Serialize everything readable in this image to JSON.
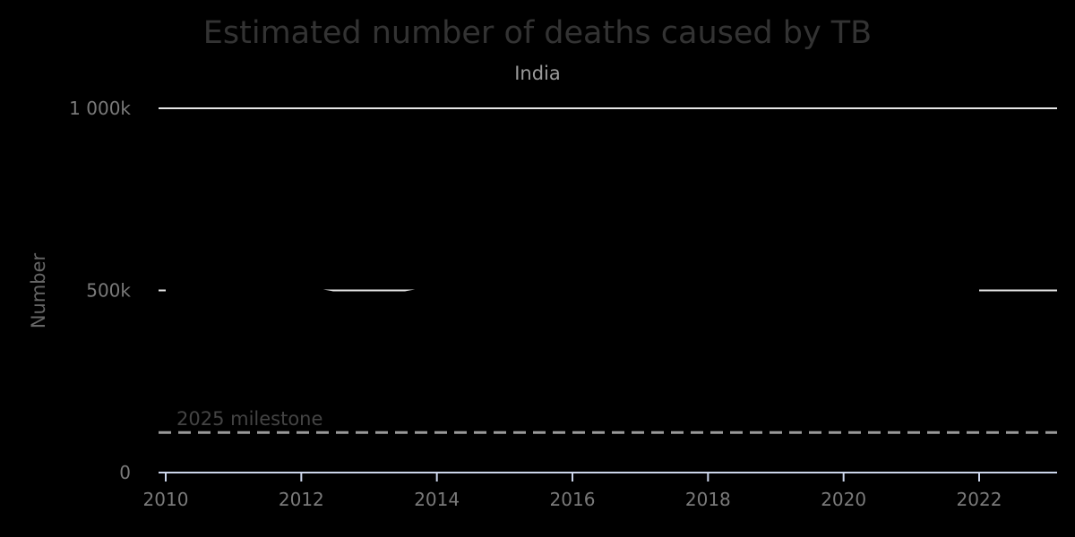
{
  "chart_data": {
    "type": "line",
    "title": "Estimated number of deaths caused by TB",
    "subtitle": "India",
    "ylabel": "Number",
    "xlabel": "",
    "x_ticks": [
      {
        "value": 2010,
        "label": "2010"
      },
      {
        "value": 2012,
        "label": "2012"
      },
      {
        "value": 2014,
        "label": "2014"
      },
      {
        "value": 2016,
        "label": "2016"
      },
      {
        "value": 2018,
        "label": "2018"
      },
      {
        "value": 2020,
        "label": "2020"
      },
      {
        "value": 2022,
        "label": "2022"
      }
    ],
    "y_ticks": [
      {
        "value": 0,
        "label": "0"
      },
      {
        "value": 500000,
        "label": "500k"
      },
      {
        "value": 1000000,
        "label": "1 000k"
      }
    ],
    "xlim": [
      2010,
      2023.2
    ],
    "ylim": [
      0,
      1000000
    ],
    "grid": true,
    "milestone": {
      "label": "2025 milestone",
      "value": 110000
    },
    "series": [
      {
        "color": "#000000",
        "x": [
          2010,
          2011,
          2012,
          2013,
          2014,
          2015,
          2016,
          2017,
          2018,
          2019,
          2020,
          2021,
          2022
        ],
        "values": [
          500000,
          500000,
          500000,
          480000,
          500000,
          500000,
          500000,
          500000,
          500000,
          500000,
          500000,
          500000,
          500000
        ]
      }
    ]
  }
}
